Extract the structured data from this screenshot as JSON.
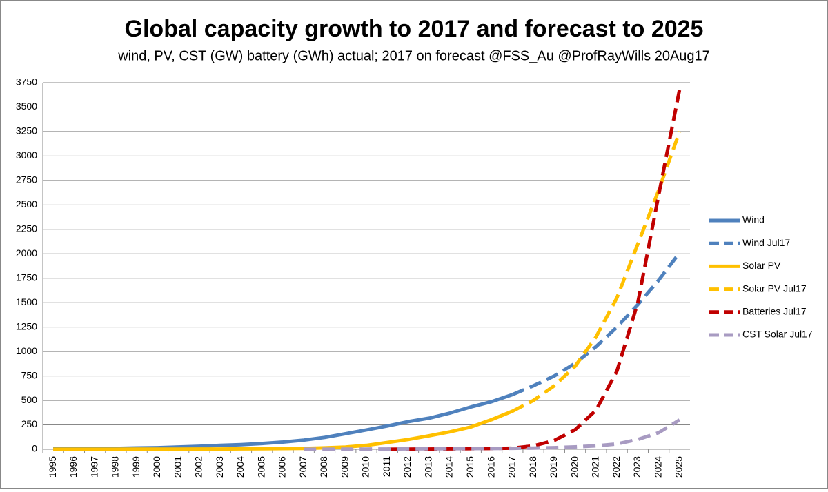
{
  "chart_data": {
    "type": "line",
    "title": "Global capacity growth to 2017 and forecast to 2025",
    "subtitle": "wind, PV, CST (GW) battery (GWh) actual; 2017 on forecast @FSS_Au @ProfRayWills   20Aug17",
    "categories": [
      "1995",
      "1996",
      "1997",
      "1998",
      "1999",
      "2000",
      "2001",
      "2002",
      "2003",
      "2004",
      "2005",
      "2006",
      "2007",
      "2008",
      "2009",
      "2010",
      "2011",
      "2012",
      "2013",
      "2014",
      "2015",
      "2016",
      "2017",
      "2018",
      "2019",
      "2020",
      "2021",
      "2022",
      "2023",
      "2024",
      "2025"
    ],
    "ylim": [
      0,
      3750
    ],
    "yticks": [
      0,
      250,
      500,
      750,
      1000,
      1250,
      1500,
      1750,
      2000,
      2250,
      2500,
      2750,
      3000,
      3250,
      3500,
      3750
    ],
    "grid": true,
    "legend": "right",
    "series": [
      {
        "name": "Wind",
        "color": "#4f81bd",
        "dashed": false,
        "values": [
          5,
          6,
          8,
          10,
          14,
          17,
          24,
          31,
          40,
          48,
          59,
          74,
          94,
          121,
          159,
          198,
          238,
          283,
          318,
          370,
          433,
          487,
          560,
          null,
          null,
          null,
          null,
          null,
          null,
          null,
          null
        ]
      },
      {
        "name": "Wind Jul17",
        "color": "#4f81bd",
        "dashed": true,
        "values": [
          null,
          null,
          null,
          null,
          null,
          null,
          null,
          null,
          null,
          null,
          null,
          null,
          null,
          null,
          null,
          null,
          null,
          null,
          null,
          null,
          null,
          null,
          560,
          650,
          750,
          880,
          1050,
          1250,
          1480,
          1730,
          2010
        ]
      },
      {
        "name": "Solar PV",
        "color": "#ffc000",
        "dashed": false,
        "values": [
          0.5,
          0.7,
          0.9,
          1,
          1.2,
          1.5,
          2,
          2.5,
          3,
          4,
          5,
          7,
          9,
          15,
          23,
          40,
          70,
          100,
          138,
          178,
          228,
          303,
          390,
          null,
          null,
          null,
          null,
          null,
          null,
          null,
          null
        ]
      },
      {
        "name": "Solar PV Jul17",
        "color": "#ffc000",
        "dashed": true,
        "values": [
          null,
          null,
          null,
          null,
          null,
          null,
          null,
          null,
          null,
          null,
          null,
          null,
          null,
          null,
          null,
          null,
          null,
          null,
          null,
          null,
          null,
          null,
          390,
          500,
          650,
          850,
          1150,
          1550,
          2100,
          2650,
          3250
        ]
      },
      {
        "name": "Batteries Jul17",
        "color": "#c00000",
        "dashed": true,
        "values": [
          null,
          null,
          null,
          null,
          null,
          null,
          null,
          null,
          null,
          null,
          null,
          null,
          null,
          null,
          null,
          null,
          1,
          2,
          3,
          4,
          6,
          8,
          12,
          35,
          90,
          200,
          400,
          800,
          1500,
          2600,
          3680
        ]
      },
      {
        "name": "CST Solar Jul17",
        "color": "#a89bc2",
        "dashed": true,
        "values": [
          null,
          null,
          null,
          null,
          null,
          null,
          null,
          null,
          null,
          null,
          null,
          null,
          0.5,
          1,
          1.5,
          2,
          3,
          4,
          5,
          6,
          7,
          8,
          10,
          13,
          17,
          25,
          35,
          55,
          100,
          170,
          300
        ]
      }
    ]
  }
}
